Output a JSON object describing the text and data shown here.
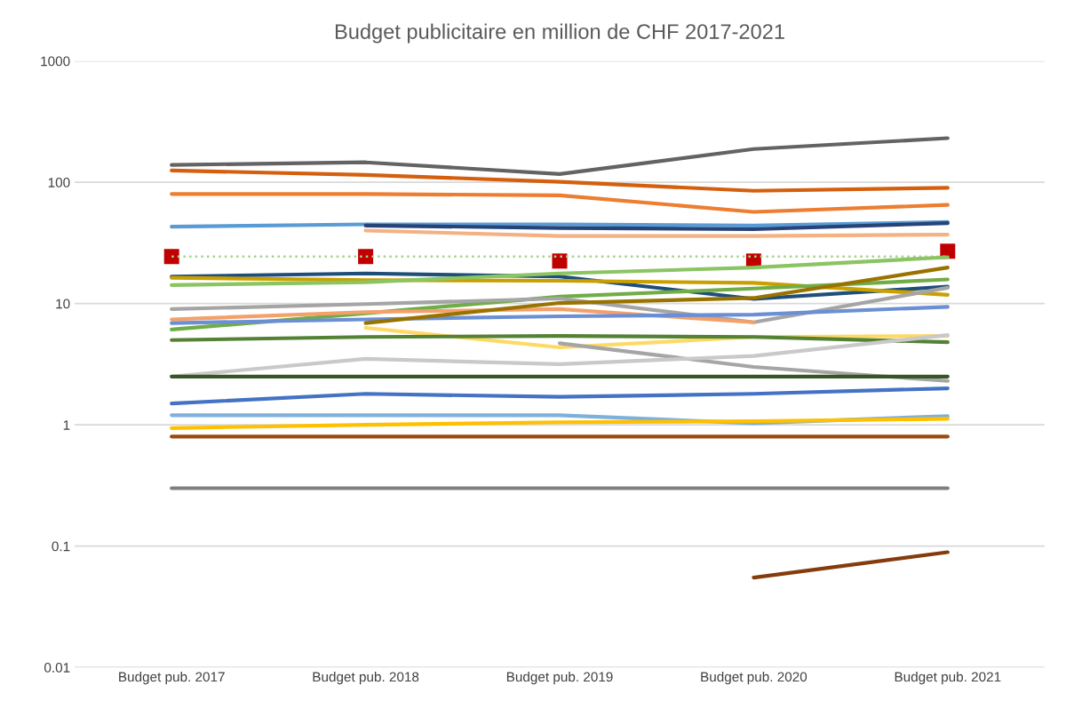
{
  "chart_data": {
    "type": "line",
    "title": "Budget publicitaire en million de CHF 2017-2021",
    "categories": [
      "Budget pub. 2017",
      "Budget pub. 2018",
      "Budget pub. 2019",
      "Budget pub. 2020",
      "Budget pub. 2021"
    ],
    "log": true,
    "ylim": [
      0.01,
      1000
    ],
    "yticks": [
      0.01,
      0.1,
      1,
      10,
      100,
      1000
    ],
    "grid": "y",
    "legend": false,
    "marker": "none",
    "line_style": "solid",
    "series": [
      {
        "color": "#636363",
        "values": [
          139,
          146,
          117,
          188,
          231
        ]
      },
      {
        "color": "#d35f0f",
        "values": [
          125,
          115,
          101,
          85,
          90
        ]
      },
      {
        "color": "#ed7d31",
        "values": [
          80,
          80,
          78,
          57,
          65
        ]
      },
      {
        "color": "#5b9bd5",
        "values": [
          43,
          45,
          45,
          44,
          47
        ]
      },
      {
        "color": "#264478",
        "values": [
          null,
          44,
          42,
          41,
          46
        ]
      },
      {
        "color": "#f4b183",
        "values": [
          null,
          40,
          36,
          36,
          37
        ]
      },
      {
        "color": "#a9d18e",
        "line_style": "dotted",
        "values": [
          24.4,
          24.4,
          24.4,
          24.4,
          24.4
        ]
      },
      {
        "color": "#1f4e79",
        "values": [
          16.7,
          17.7,
          16.7,
          10.9,
          13.8
        ]
      },
      {
        "color": "#c9a000",
        "values": [
          16.3,
          15.6,
          15.4,
          14.8,
          11.8
        ]
      },
      {
        "color": "#8bc462",
        "values": [
          14.2,
          15,
          17.7,
          19.8,
          24.1
        ]
      },
      {
        "color": "#70ad47",
        "values": [
          6.1,
          8.3,
          11.4,
          13.3,
          15.8
        ]
      },
      {
        "color": "#a5a5a5",
        "values": [
          9.0,
          9.9,
          11,
          7.0,
          13.5
        ]
      },
      {
        "color": "#f4a06a",
        "values": [
          7.4,
          8.5,
          9.0,
          7.0,
          null
        ]
      },
      {
        "color": "#6a8fd4",
        "values": [
          6.9,
          7.4,
          7.85,
          8.1,
          9.4
        ]
      },
      {
        "color": "#997300",
        "values": [
          null,
          6.9,
          10.1,
          11.1,
          19.8
        ]
      },
      {
        "color": "#ffd966",
        "values": [
          null,
          6.3,
          4.35,
          5.3,
          5.4
        ]
      },
      {
        "color": "#548235",
        "values": [
          5.0,
          5.3,
          5.4,
          5.3,
          4.8
        ]
      },
      {
        "color": "#a5a5a5",
        "values": [
          null,
          null,
          4.7,
          3.0,
          2.3
        ]
      },
      {
        "color": "#c9c9c9",
        "values": [
          2.5,
          3.5,
          3.16,
          3.7,
          5.5
        ]
      },
      {
        "color": "#375623",
        "values": [
          2.5,
          2.5,
          2.5,
          2.5,
          2.5
        ]
      },
      {
        "color": "#4472c4",
        "values": [
          1.5,
          1.8,
          1.7,
          1.8,
          2.0
        ]
      },
      {
        "color": "#7eb0dc",
        "values": [
          1.2,
          1.2,
          1.2,
          1.03,
          1.18
        ]
      },
      {
        "color": "#ffc000",
        "values": [
          0.94,
          1.0,
          1.05,
          1.07,
          1.12
        ]
      },
      {
        "color": "#9e480e",
        "values": [
          0.8,
          0.8,
          0.8,
          0.8,
          0.8
        ]
      },
      {
        "color": "#7f7f7f",
        "values": [
          0.3,
          0.3,
          0.3,
          0.3,
          0.3
        ]
      },
      {
        "color": "#843c0c",
        "values": [
          null,
          null,
          null,
          0.055,
          0.089
        ]
      },
      {
        "type": "scatter",
        "marker": "square",
        "color": "#c00000",
        "values": [
          24.4,
          24.4,
          22.4,
          22.4,
          27
        ]
      }
    ]
  }
}
